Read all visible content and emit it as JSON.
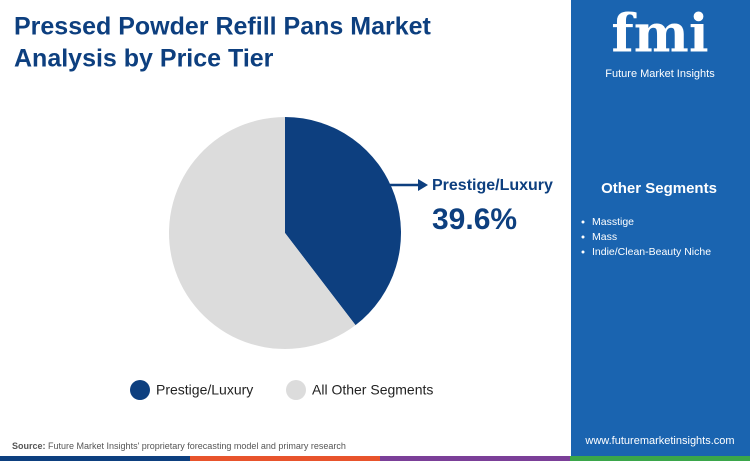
{
  "chart_data": {
    "type": "pie",
    "title": [
      "Pressed Powder Refill Pans Market",
      "Analysis by Price Tier"
    ],
    "categories": [
      "Prestige/Luxury",
      "All Other Segments"
    ],
    "values": [
      39.6,
      60.4
    ],
    "value_labels": [
      "39.6%",
      null
    ],
    "colors": [
      "#0d3f7f",
      "#dcdcdc"
    ],
    "legend": "bottom",
    "callout": 0
  },
  "logo": {
    "mark": "fmi",
    "name": "Future Market Insights"
  },
  "sidebar": {
    "title": "Other Segments",
    "items": [
      "Masstige",
      "Mass",
      "Indie/Clean-Beauty Niche"
    ],
    "website": "www.futuremarketinsights.com"
  },
  "source": {
    "label": "Source:",
    "text": "Future Market Insights' proprietary forecasting model and primary research"
  }
}
